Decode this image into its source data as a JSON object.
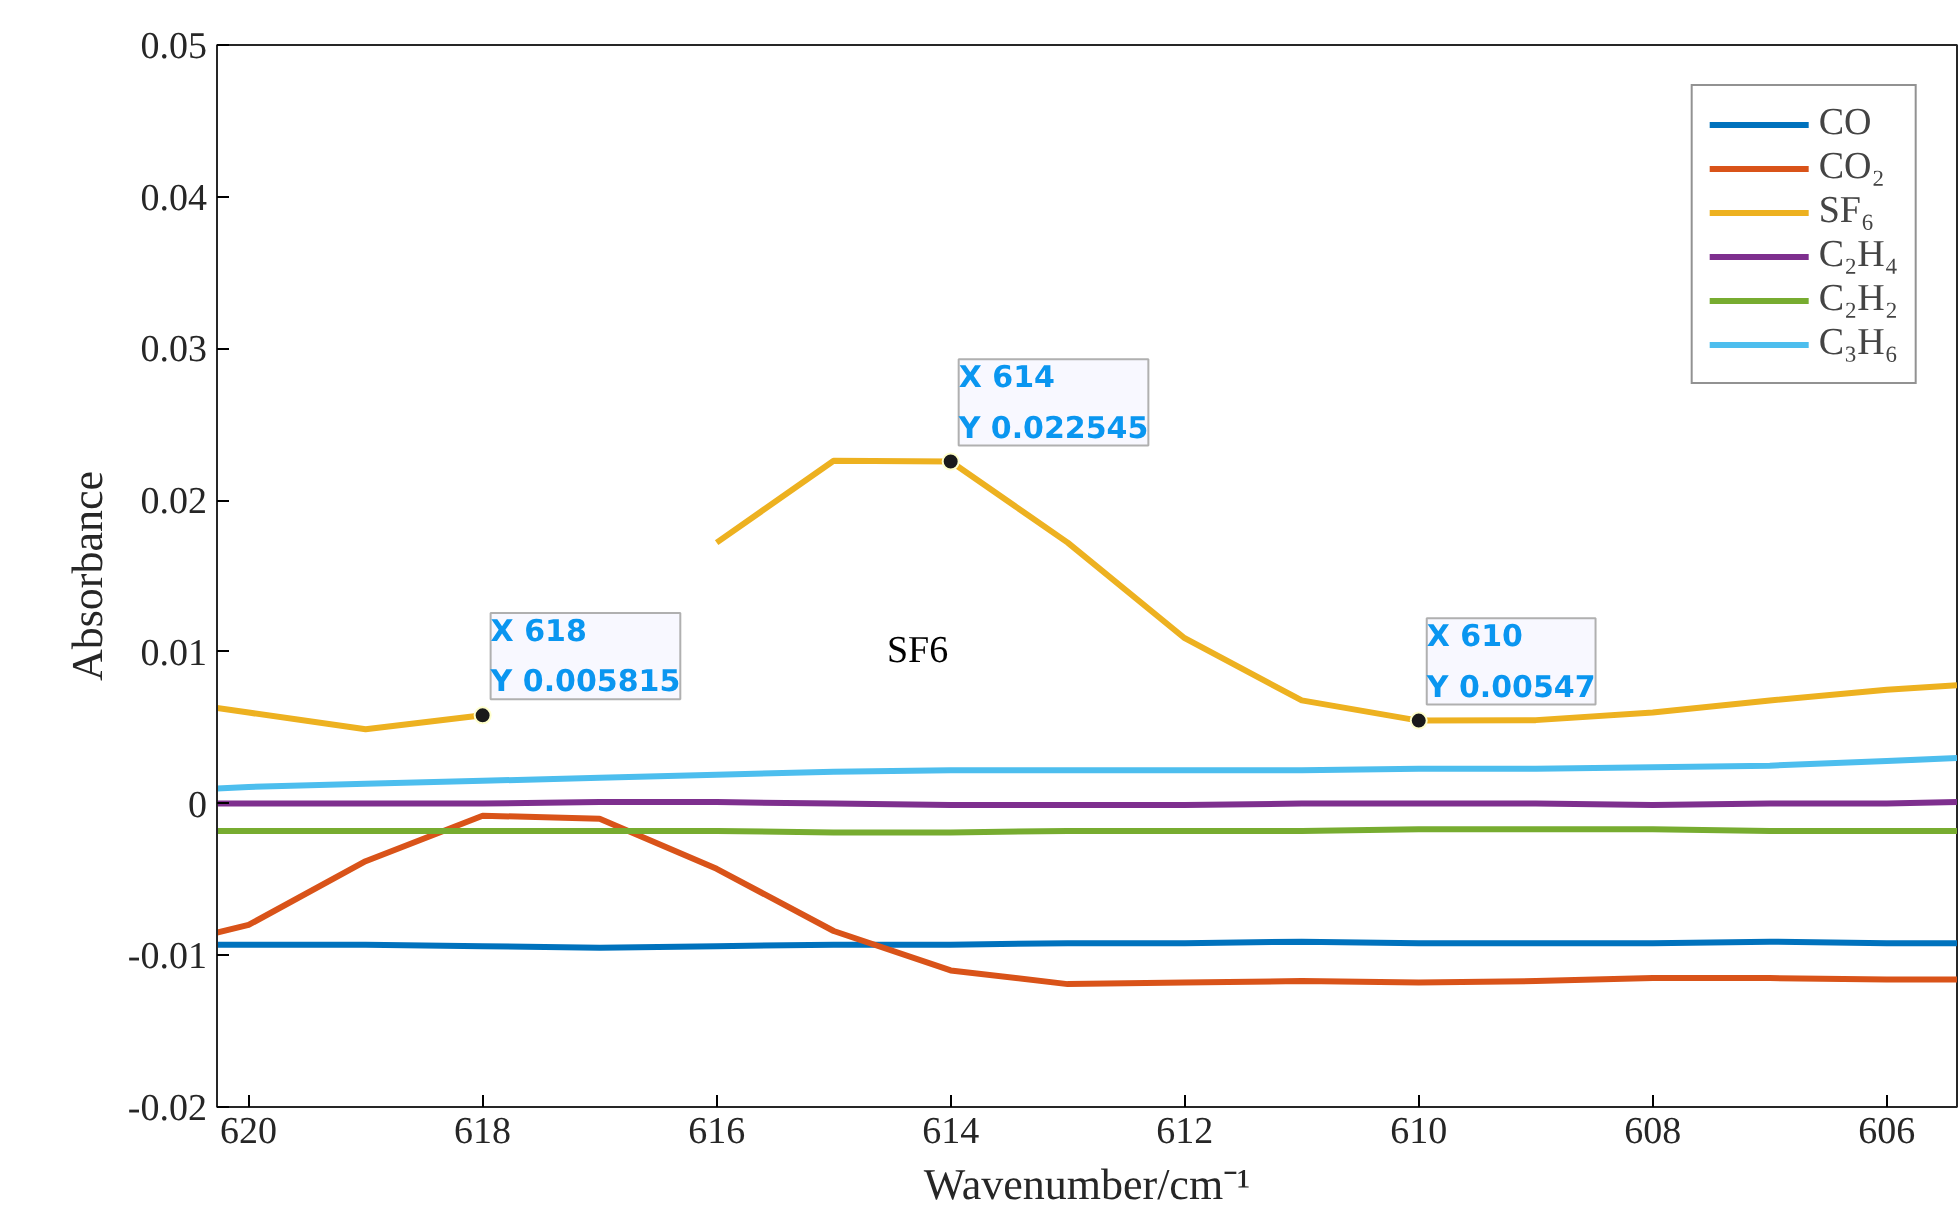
{
  "chart_data": {
    "type": "line",
    "xlabel": "Wavenumber/cm⁻¹",
    "ylabel": "Absorbance",
    "x": [
      620.27,
      620,
      619,
      618,
      617,
      616,
      615,
      614,
      613,
      612,
      611,
      610,
      609,
      608,
      607,
      606,
      605.4
    ],
    "xlim": [
      620.27,
      605.4
    ],
    "xticks": [
      620,
      618,
      616,
      614,
      612,
      610,
      608,
      606
    ],
    "ylim": [
      -0.02,
      0.05
    ],
    "yticks": [
      -0.02,
      -0.01,
      0,
      0.01,
      0.02,
      0.03,
      0.04,
      0.05
    ],
    "grid": false,
    "legend": "top right",
    "line_style": "solid",
    "series": [
      {
        "name": "CO",
        "color": "#0072bd",
        "values": [
          -0.0093,
          -0.0093,
          -0.0093,
          -0.0094,
          -0.0095,
          -0.0094,
          -0.0093,
          -0.0093,
          -0.0092,
          -0.0092,
          -0.0091,
          -0.0092,
          -0.0092,
          -0.0092,
          -0.0091,
          -0.0092,
          -0.0092
        ]
      },
      {
        "name": "CO₂",
        "color": "#d95319",
        "values": [
          -0.0085,
          -0.008,
          -0.0038,
          -0.0008,
          -0.001,
          -0.0043,
          -0.0084,
          -0.011,
          -0.0119,
          -0.0118,
          -0.0117,
          -0.0118,
          -0.0117,
          -0.0115,
          -0.0115,
          -0.0116,
          -0.0116
        ]
      },
      {
        "name": "SF₆",
        "color": "#edb120",
        "values": [
          0.0063,
          0.006,
          0.0049,
          0.005815,
          null,
          0.0172,
          0.0226,
          0.022545,
          0.0172,
          0.0109,
          0.0068,
          0.00547,
          0.0055,
          0.006,
          0.0068,
          0.0075,
          0.0078
        ]
      },
      {
        "name": "C₂H₄",
        "color": "#7e2f8e",
        "values": [
          0.0,
          0.0,
          0.0,
          0.0,
          0.0001,
          0.0001,
          0.0,
          -0.0001,
          -0.0001,
          -0.0001,
          0.0,
          0.0,
          0.0,
          -0.0001,
          0.0,
          0.0,
          0.0001
        ]
      },
      {
        "name": "C₂H₂",
        "color": "#77ac30",
        "values": [
          -0.0018,
          -0.0018,
          -0.0018,
          -0.0018,
          -0.0018,
          -0.0018,
          -0.0019,
          -0.0019,
          -0.0018,
          -0.0018,
          -0.0018,
          -0.0017,
          -0.0017,
          -0.0017,
          -0.0018,
          -0.0018,
          -0.0018
        ]
      },
      {
        "name": "C₃H₆",
        "color": "#4dbeee",
        "values": [
          0.001,
          0.0011,
          0.0013,
          0.0015,
          0.0017,
          0.0019,
          0.0021,
          0.0022,
          0.0022,
          0.0022,
          0.0022,
          0.0023,
          0.0023,
          0.0024,
          0.0025,
          0.0028,
          0.003
        ]
      }
    ],
    "annotations": [
      {
        "text": "X 618\nY 0.005815",
        "x": 618,
        "y": 0.005815
      },
      {
        "text": "X 614\nY 0.022545",
        "x": 614,
        "y": 0.022545
      },
      {
        "text": "X 610\nY 0.00547",
        "x": 610,
        "y": 0.00547
      },
      "SF6"
    ]
  }
}
